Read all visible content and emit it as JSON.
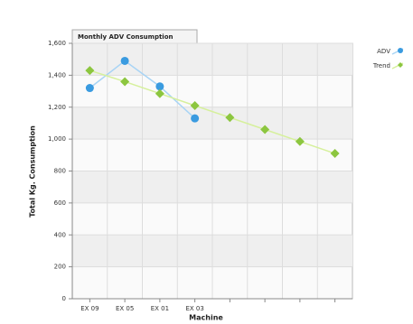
{
  "chart_data": {
    "type": "line",
    "title": "Monthly ADV Consumption",
    "x_label": "Machine",
    "y_label": "Total Kg. Consumption",
    "categories": [
      "EX 09",
      "EX 05",
      "EX 01",
      "EX 03",
      null,
      null,
      null,
      null
    ],
    "series": [
      {
        "name": "ADV",
        "color": "#3a9be0",
        "line_color": "#a8d4f5",
        "marker": "circle",
        "values": [
          1320,
          1490,
          1330,
          1130,
          null,
          null,
          null,
          null
        ]
      },
      {
        "name": "Trend",
        "color": "#8cc63f",
        "line_color": "#d6f09c",
        "marker": "diamond",
        "values": [
          1430,
          1360,
          1285,
          1210,
          1135,
          1060,
          985,
          910
        ]
      }
    ],
    "ylim": [
      0,
      1600
    ],
    "yticks": [
      0,
      200,
      400,
      600,
      800,
      {
        "value": 1000,
        "label": "1,000"
      },
      {
        "value": 1200,
        "label": "1,200"
      },
      {
        "value": 1400,
        "label": "1,400"
      },
      {
        "value": 1600,
        "label": "1,600"
      }
    ],
    "grid": true,
    "legend": "right"
  }
}
